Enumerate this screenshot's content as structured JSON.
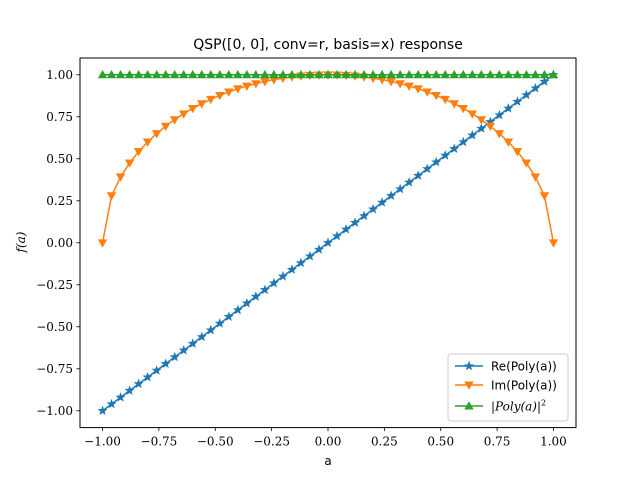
{
  "chart_data": {
    "type": "line",
    "title": "QSP([0, 0], conv=r, basis=x) response",
    "xlabel": "a",
    "ylabel": "f(a)",
    "xlim": [
      -1.1,
      1.1
    ],
    "ylim": [
      -1.1,
      1.1
    ],
    "xticks": [
      -1.0,
      -0.75,
      -0.5,
      -0.25,
      0.0,
      0.25,
      0.5,
      0.75,
      1.0
    ],
    "xtick_labels": [
      "−1.00",
      "−0.75",
      "−0.50",
      "−0.25",
      "0.00",
      "0.25",
      "0.50",
      "0.75",
      "1.00"
    ],
    "yticks": [
      -1.0,
      -0.75,
      -0.5,
      -0.25,
      0.0,
      0.25,
      0.5,
      0.75,
      1.0
    ],
    "ytick_labels": [
      "−1.00",
      "−0.75",
      "−0.50",
      "−0.25",
      "0.00",
      "0.25",
      "0.50",
      "0.75",
      "1.00"
    ],
    "grid": false,
    "legend_position": "lower-right",
    "x": [
      -1.0,
      -0.96,
      -0.92,
      -0.88,
      -0.84,
      -0.8,
      -0.76,
      -0.72,
      -0.68,
      -0.64,
      -0.6,
      -0.56,
      -0.52,
      -0.48,
      -0.44,
      -0.4,
      -0.36,
      -0.32,
      -0.28,
      -0.24,
      -0.2,
      -0.16,
      -0.12,
      -0.08,
      -0.04,
      0.0,
      0.04,
      0.08,
      0.12,
      0.16,
      0.2,
      0.24,
      0.28,
      0.32,
      0.36,
      0.4,
      0.44,
      0.48,
      0.52,
      0.56,
      0.6,
      0.64,
      0.68,
      0.72,
      0.76,
      0.8,
      0.84,
      0.88,
      0.92,
      0.96,
      1.0
    ],
    "series": [
      {
        "name": "Re(Poly(a))",
        "color": "#1f77b4",
        "marker": "star",
        "values": [
          -1.0,
          -0.96,
          -0.92,
          -0.88,
          -0.84,
          -0.8,
          -0.76,
          -0.72,
          -0.68,
          -0.64,
          -0.6,
          -0.56,
          -0.52,
          -0.48,
          -0.44,
          -0.4,
          -0.36,
          -0.32,
          -0.28,
          -0.24,
          -0.2,
          -0.16,
          -0.12,
          -0.08,
          -0.04,
          0.0,
          0.04,
          0.08,
          0.12,
          0.16,
          0.2,
          0.24,
          0.28,
          0.32,
          0.36,
          0.4,
          0.44,
          0.48,
          0.52,
          0.56,
          0.6,
          0.64,
          0.68,
          0.72,
          0.76,
          0.8,
          0.84,
          0.88,
          0.92,
          0.96,
          1.0
        ]
      },
      {
        "name": "Im(Poly(a))",
        "color": "#ff7f0e",
        "marker": "triangle-down",
        "values": [
          0.0,
          0.28,
          0.392,
          0.475,
          0.543,
          0.6,
          0.65,
          0.694,
          0.733,
          0.768,
          0.8,
          0.828,
          0.854,
          0.877,
          0.898,
          0.917,
          0.933,
          0.947,
          0.96,
          0.971,
          0.98,
          0.987,
          0.993,
          0.997,
          0.999,
          1.0,
          0.999,
          0.997,
          0.993,
          0.987,
          0.98,
          0.971,
          0.96,
          0.947,
          0.933,
          0.917,
          0.898,
          0.877,
          0.854,
          0.828,
          0.8,
          0.768,
          0.733,
          0.694,
          0.65,
          0.6,
          0.543,
          0.475,
          0.392,
          0.28,
          0.0
        ]
      },
      {
        "name": "|Poly(a)|^2",
        "color": "#2ca02c",
        "marker": "triangle-up",
        "values": [
          1.0,
          1.0,
          1.0,
          1.0,
          1.0,
          1.0,
          1.0,
          1.0,
          1.0,
          1.0,
          1.0,
          1.0,
          1.0,
          1.0,
          1.0,
          1.0,
          1.0,
          1.0,
          1.0,
          1.0,
          1.0,
          1.0,
          1.0,
          1.0,
          1.0,
          1.0,
          1.0,
          1.0,
          1.0,
          1.0,
          1.0,
          1.0,
          1.0,
          1.0,
          1.0,
          1.0,
          1.0,
          1.0,
          1.0,
          1.0,
          1.0,
          1.0,
          1.0,
          1.0,
          1.0,
          1.0,
          1.0,
          1.0,
          1.0,
          1.0,
          1.0
        ]
      }
    ]
  }
}
